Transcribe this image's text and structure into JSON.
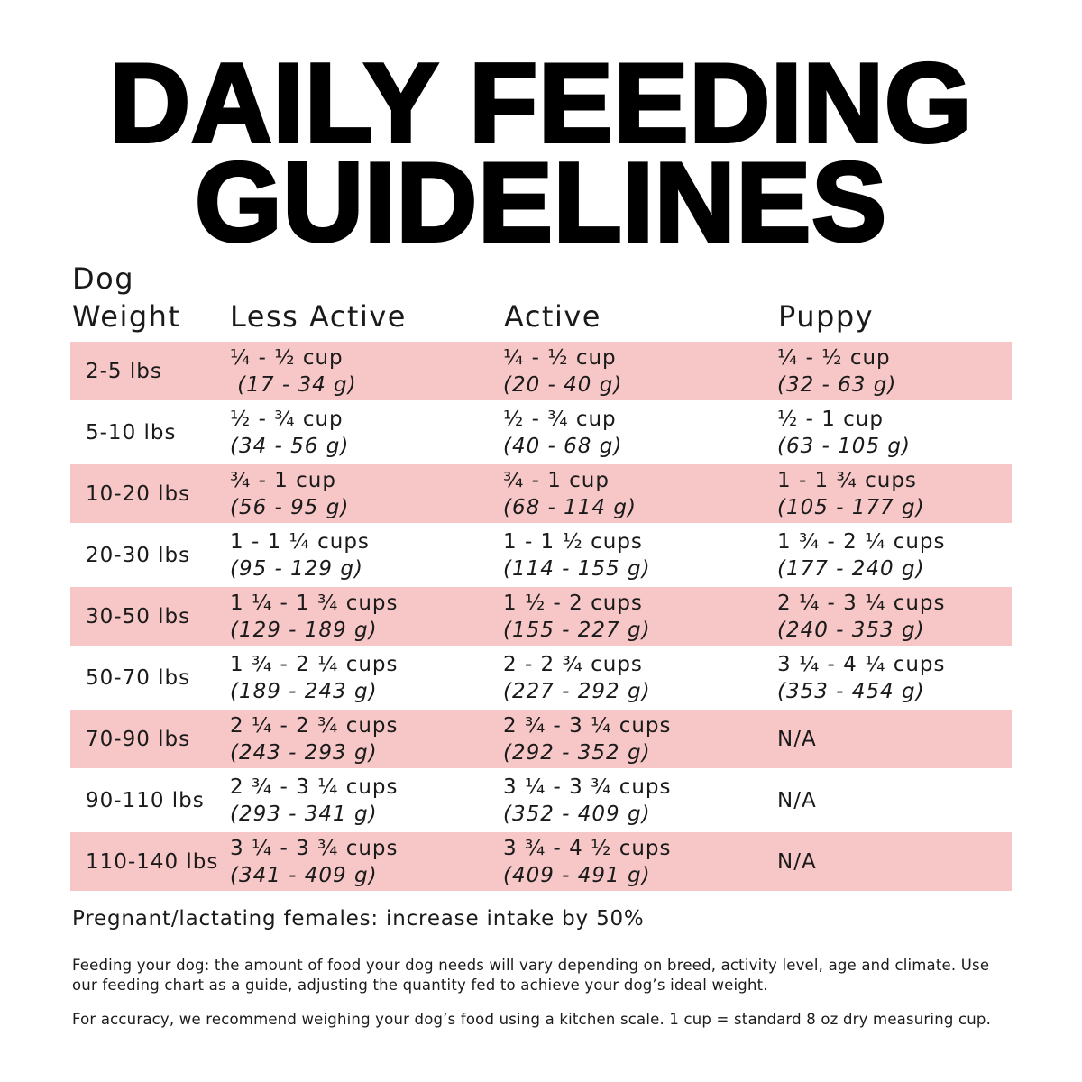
{
  "title": {
    "line1": "DAILY FEEDING",
    "line2": "GUIDELINES"
  },
  "colors": {
    "row_highlight": "#f7c6c6",
    "text": "#1a1a1a"
  },
  "headers": {
    "weight_line1": "Dog",
    "weight_line2": "Weight",
    "less_active": "Less Active",
    "active": "Active",
    "puppy": "Puppy"
  },
  "rows": [
    {
      "weight": "2-5 lbs",
      "less_active": {
        "cups": "¼ - ½ cup",
        "grams": " (17 - 34 g)"
      },
      "active": {
        "cups": "¼ - ½ cup",
        "grams": "(20 - 40 g)"
      },
      "puppy": {
        "cups": "¼ - ½ cup",
        "grams": "(32 - 63 g)"
      }
    },
    {
      "weight": "5-10 lbs",
      "less_active": {
        "cups": "½ - ¾ cup",
        "grams": "(34 - 56 g)"
      },
      "active": {
        "cups": "½ - ¾ cup",
        "grams": "(40 - 68 g)"
      },
      "puppy": {
        "cups": "½ - 1 cup",
        "grams": "(63 - 105 g)"
      }
    },
    {
      "weight": "10-20 lbs",
      "less_active": {
        "cups": "¾ - 1 cup",
        "grams": "(56 - 95 g)"
      },
      "active": {
        "cups": "¾ - 1 cup",
        "grams": "(68 - 114 g)"
      },
      "puppy": {
        "cups": "1 - 1 ¾ cups",
        "grams": "(105 - 177 g)"
      }
    },
    {
      "weight": "20-30 lbs",
      "less_active": {
        "cups": "1 - 1 ¼ cups",
        "grams": "(95 - 129 g)"
      },
      "active": {
        "cups": "1 - 1 ½ cups",
        "grams": "(114 - 155 g)"
      },
      "puppy": {
        "cups": "1 ¾ - 2 ¼ cups",
        "grams": "(177 - 240 g)"
      }
    },
    {
      "weight": "30-50 lbs",
      "less_active": {
        "cups": "1 ¼ - 1 ¾ cups",
        "grams": "(129 - 189 g)"
      },
      "active": {
        "cups": "1 ½ - 2 cups",
        "grams": "(155 - 227 g)"
      },
      "puppy": {
        "cups": "2 ¼ - 3 ¼ cups",
        "grams": "(240 - 353 g)"
      }
    },
    {
      "weight": "50-70 lbs",
      "less_active": {
        "cups": "1 ¾ - 2 ¼ cups",
        "grams": "(189 - 243 g)"
      },
      "active": {
        "cups": "2 - 2 ¾ cups",
        "grams": "(227 - 292 g)"
      },
      "puppy": {
        "cups": "3 ¼ - 4 ¼ cups",
        "grams": "(353 - 454 g)"
      }
    },
    {
      "weight": "70-90 lbs",
      "less_active": {
        "cups": "2 ¼ - 2 ¾ cups",
        "grams": "(243 - 293 g)"
      },
      "active": {
        "cups": "2 ¾ - 3 ¼ cups",
        "grams": "(292 - 352 g)"
      },
      "puppy": {
        "cups": "N/A",
        "grams": ""
      }
    },
    {
      "weight": "90-110 lbs",
      "less_active": {
        "cups": "2 ¾ - 3 ¼ cups",
        "grams": "(293 - 341 g)"
      },
      "active": {
        "cups": "3 ¼ - 3 ¾ cups",
        "grams": "(352 - 409 g)"
      },
      "puppy": {
        "cups": "N/A",
        "grams": ""
      }
    },
    {
      "weight": "110-140 lbs",
      "less_active": {
        "cups": "3 ¼ - 3 ¾ cups",
        "grams": "(341 - 409 g)"
      },
      "active": {
        "cups": "3 ¾ - 4 ½ cups",
        "grams": "(409 - 491 g)"
      },
      "puppy": {
        "cups": "N/A",
        "grams": ""
      }
    }
  ],
  "note": "Pregnant/lactating females: increase intake by 50%",
  "footer": {
    "p1": "Feeding your dog: the amount of food your dog needs will vary depending on breed, activity level, age and climate. Use our feeding chart as a guide, adjusting the quantity fed to achieve your dog’s ideal weight.",
    "p2": "For accuracy, we recommend weighing your dog’s food using a kitchen scale. 1 cup = standard 8 oz dry measuring cup."
  }
}
